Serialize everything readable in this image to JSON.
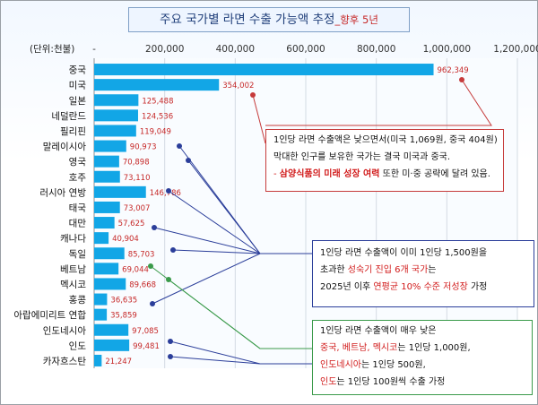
{
  "title": {
    "main": "주요 국가별 라면 수출 가능액 추정",
    "suffix": "_향후 5년"
  },
  "chart_data": {
    "type": "bar",
    "orientation": "horizontal",
    "unit_label": "(단위:천불)",
    "categories": [
      "중국",
      "미국",
      "일본",
      "네덜란드",
      "필리핀",
      "말레이시아",
      "영국",
      "호주",
      "러시아 연방",
      "태국",
      "대만",
      "캐나다",
      "독일",
      "베트남",
      "멕시코",
      "홍콩",
      "아랍에미리트 연합",
      "인도네시아",
      "인도",
      "카자흐스탄"
    ],
    "values": [
      962349,
      354002,
      125488,
      124536,
      119049,
      90973,
      70898,
      73110,
      146786,
      73007,
      57625,
      40904,
      85703,
      69044,
      89668,
      36635,
      35859,
      97085,
      99481,
      21247
    ],
    "value_labels": [
      "962,349",
      "354,002",
      "125,488",
      "124,536",
      "119,049",
      "90,973",
      "70,898",
      "73,110",
      "146,786",
      "73,007",
      "57,625",
      "40,904",
      "85,703",
      "69,044",
      "89,668",
      "36,635",
      "35,859",
      "97,085",
      "99,481",
      "21,247"
    ],
    "x_ticks": [
      "-",
      "200,000",
      "400,000",
      "600,000",
      "800,000",
      "1,000,000",
      "1,200,000"
    ],
    "xlim": [
      0,
      1200000
    ],
    "bar_color": "#12a6e6",
    "label_color": "#c62828"
  },
  "notes": {
    "n1": {
      "l1": "1인당 라면 수출액은 낮으면서(미국 1,069원, 중국 404원)",
      "l2": "막대한 인구를 보유한 국가는 결국 미국과 중국.",
      "l3a": "- ",
      "l3b": "삼양식품의 미래 성장 여력",
      "l3c": " 또한 미·중 공략에 달려 있음."
    },
    "n2": {
      "l1": "1인당 라면 수출액이 이미 1인당 1,500원을",
      "l2a": "초과한 ",
      "l2b": "성숙기 진입 6개 국가",
      "l2c": "는",
      "l3a": "2025년 이후 ",
      "l3b": "연평균 10% 수준 저성장",
      "l3c": " 가정"
    },
    "n3": {
      "l1": "1인당 라면 수출액이 매우 낮은",
      "l2a": "중국, 베트남, 멕시코",
      "l2b": "는 1인당 1,000원,",
      "l3a": "인도네시아",
      "l3b": "는 1인당 500원,",
      "l4a": "인도",
      "l4b": "는 1인당 100원씩 수출 가정"
    }
  },
  "colors": {
    "red_note": "#c63b3b",
    "blue_note": "#2b3e9a",
    "green_note": "#3a9a4a"
  }
}
